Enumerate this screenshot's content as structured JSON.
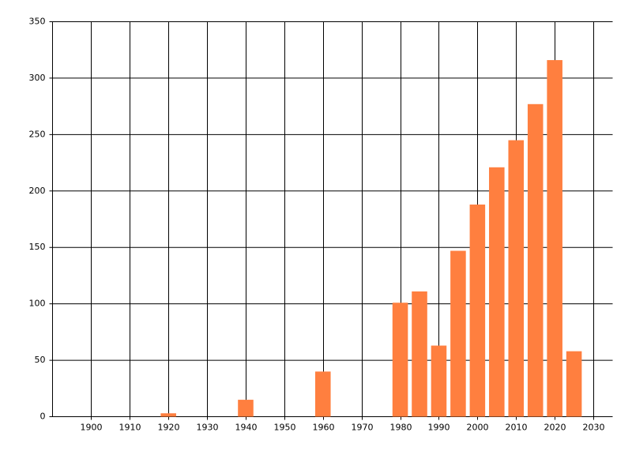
{
  "chart_data": {
    "type": "bar",
    "x": [
      1920,
      1940,
      1960,
      1980,
      1985,
      1990,
      1995,
      2000,
      2005,
      2010,
      2015,
      2020,
      2025
    ],
    "values": [
      3,
      15,
      40,
      101,
      111,
      63,
      147,
      188,
      221,
      245,
      277,
      316,
      58
    ],
    "color": "#ff7f3f",
    "xlim": [
      1890,
      2035
    ],
    "xticks": [
      1900,
      1910,
      1920,
      1930,
      1940,
      1950,
      1960,
      1970,
      1980,
      1990,
      2000,
      2010,
      2020,
      2030
    ],
    "ylim": [
      0,
      350
    ],
    "yticks": [
      0,
      50,
      100,
      150,
      200,
      250,
      300,
      350
    ],
    "grid": true
  }
}
